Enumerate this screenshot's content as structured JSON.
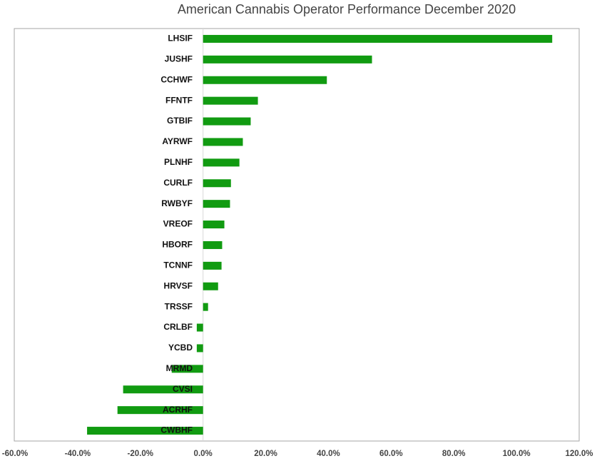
{
  "chart_data": {
    "type": "hbar",
    "title": "American Cannabis Operator Performance December 2020",
    "categories": [
      "LHSIF",
      "JUSHF",
      "CCHWF",
      "FFNTF",
      "GTBIF",
      "AYRWF",
      "PLNHF",
      "CURLF",
      "RWBYF",
      "VREOF",
      "HBORF",
      "TCNNF",
      "HRVSF",
      "TRSSF",
      "CRLBF",
      "YCBD",
      "MRMD",
      "CVSI",
      "ACRHF",
      "CWBHF"
    ],
    "values": [
      111.4,
      53.9,
      39.5,
      17.5,
      15.2,
      12.7,
      11.6,
      8.9,
      8.6,
      6.8,
      6.1,
      5.9,
      4.8,
      1.6,
      -2.0,
      -2.0,
      -10.0,
      -25.5,
      -27.3,
      -37.0
    ],
    "color": "#119b11",
    "xlim": [
      -60,
      120
    ],
    "xticks": [
      {
        "value": -60,
        "label": "-60.0%"
      },
      {
        "value": -40,
        "label": "-40.0%"
      },
      {
        "value": -20,
        "label": "-20.0%"
      },
      {
        "value": 0,
        "label": "0.0%"
      },
      {
        "value": 20,
        "label": "20.0%"
      },
      {
        "value": 40,
        "label": "40.0%"
      },
      {
        "value": 60,
        "label": "60.0%"
      },
      {
        "value": 80,
        "label": "80.0%"
      },
      {
        "value": 100,
        "label": "100.0%"
      },
      {
        "value": 120,
        "label": "120.0%"
      }
    ]
  }
}
